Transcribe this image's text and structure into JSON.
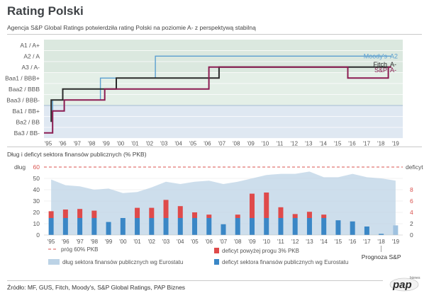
{
  "title": "Rating Polski",
  "subtitle": "Agencja S&P Global Ratings potwierdziła rating Polski na poziomie A- z perspektywą stabilną",
  "section2_title": "Dług i deficyt sektora finansów publicznych (% PKB)",
  "source": "Źródło: MF, GUS, Fitch, Moody's, S&P Global Ratings, PAP Biznes",
  "logo": {
    "text": "pap",
    "small": "biznes"
  },
  "colors": {
    "sp": "#8b1c52",
    "fitch": "#2b2b2b",
    "moodys": "#5b9fd0",
    "band_green": "#dbe8df",
    "band_blue": "#dfe8f2",
    "debt_area": "#bcd3e6",
    "deficit_blue": "#3a87c6",
    "deficit_red": "#df4a4a",
    "axis_red": "#d9534f"
  },
  "chart_data": [
    {
      "type": "line",
      "x_ticks": [
        "'95",
        "'96",
        "'97",
        "'98",
        "'99",
        "'00",
        "'01",
        "'02",
        "'03",
        "'04",
        "'05",
        "'06",
        "'07",
        "'08",
        "'09",
        "'10",
        "'11",
        "'12",
        "'13",
        "'14",
        "'15",
        "'16",
        "'17",
        "'18",
        "'19"
      ],
      "xlim": [
        1995,
        2019
      ],
      "y_categories": [
        "A1 / A+",
        "A2 / A",
        "A3 / A-",
        "Baa1 / BBB+",
        "Baa2 / BBB",
        "Baa3 / BBB-",
        "Ba1 / BB+",
        "Ba2 / BB",
        "Ba3 / BB-"
      ],
      "series": [
        {
          "name": "Moody's",
          "end_label": "A2",
          "points": [
            [
              1995.6,
              6
            ],
            [
              1995.6,
              5
            ],
            [
              1998.9,
              5
            ],
            [
              1998.9,
              3
            ],
            [
              2002.7,
              3
            ],
            [
              2002.7,
              1
            ],
            [
              2019,
              1
            ]
          ]
        },
        {
          "name": "Fitch",
          "end_label": "A-",
          "points": [
            [
              1995.5,
              7
            ],
            [
              1995.5,
              5
            ],
            [
              1996.3,
              5
            ],
            [
              1996.3,
              4
            ],
            [
              2000.0,
              4
            ],
            [
              2000.0,
              3
            ],
            [
              2007.1,
              3
            ],
            [
              2007.1,
              2
            ],
            [
              2019,
              2
            ]
          ]
        },
        {
          "name": "S&P",
          "end_label": "A-",
          "points": [
            [
              1995.0,
              8
            ],
            [
              1995.6,
              8
            ],
            [
              1995.6,
              6
            ],
            [
              1996.4,
              6
            ],
            [
              1996.4,
              5
            ],
            [
              1999.2,
              5
            ],
            [
              1999.2,
              4
            ],
            [
              2006.4,
              4
            ],
            [
              2006.4,
              2
            ],
            [
              2016.0,
              2
            ],
            [
              2016.0,
              3
            ],
            [
              2018.8,
              3
            ],
            [
              2018.8,
              2
            ],
            [
              2019,
              2
            ]
          ]
        }
      ]
    },
    {
      "type": "bar",
      "categories": [
        "'95",
        "'96",
        "'97",
        "'98",
        "'99",
        "'00",
        "'01",
        "'02",
        "'03",
        "'04",
        "'05",
        "'06",
        "'07",
        "'08",
        "'09",
        "'10",
        "'11",
        "'12",
        "'13",
        "'14",
        "'15",
        "'16",
        "'17",
        "'18",
        "'19"
      ],
      "left_axis": {
        "label": "dług",
        "ylim": [
          0,
          60
        ],
        "ticks": [
          0,
          10,
          20,
          30,
          40,
          50,
          60
        ]
      },
      "right_axis": {
        "label": "deficyt",
        "ylim": [
          0,
          12
        ],
        "ticks": [
          0,
          2,
          4,
          6,
          8
        ]
      },
      "debt": [
        49,
        44,
        43,
        40,
        41,
        37,
        38,
        42,
        47,
        45,
        47,
        48,
        45,
        47,
        50,
        53,
        54,
        54,
        56,
        51,
        51,
        54,
        51,
        50,
        48
      ],
      "deficit_total": [
        4.2,
        4.5,
        4.6,
        4.3,
        2.3,
        3.0,
        4.8,
        4.8,
        6.2,
        5.1,
        4.0,
        3.6,
        1.9,
        3.6,
        7.3,
        7.5,
        4.9,
        3.7,
        4.1,
        3.6,
        2.6,
        2.4,
        1.5,
        0.2,
        1.7
      ],
      "series": [
        {
          "name": "dług sektora finansów publicznych wg Eurostatu"
        },
        {
          "name": "deficyt sektora finansów publicznych wg Eurostatu"
        },
        {
          "name": "deficyt powyżej progu 3% PKB"
        },
        {
          "name": "próg 60% PKB"
        }
      ],
      "forecast_label": "Prognoza S&P"
    }
  ]
}
